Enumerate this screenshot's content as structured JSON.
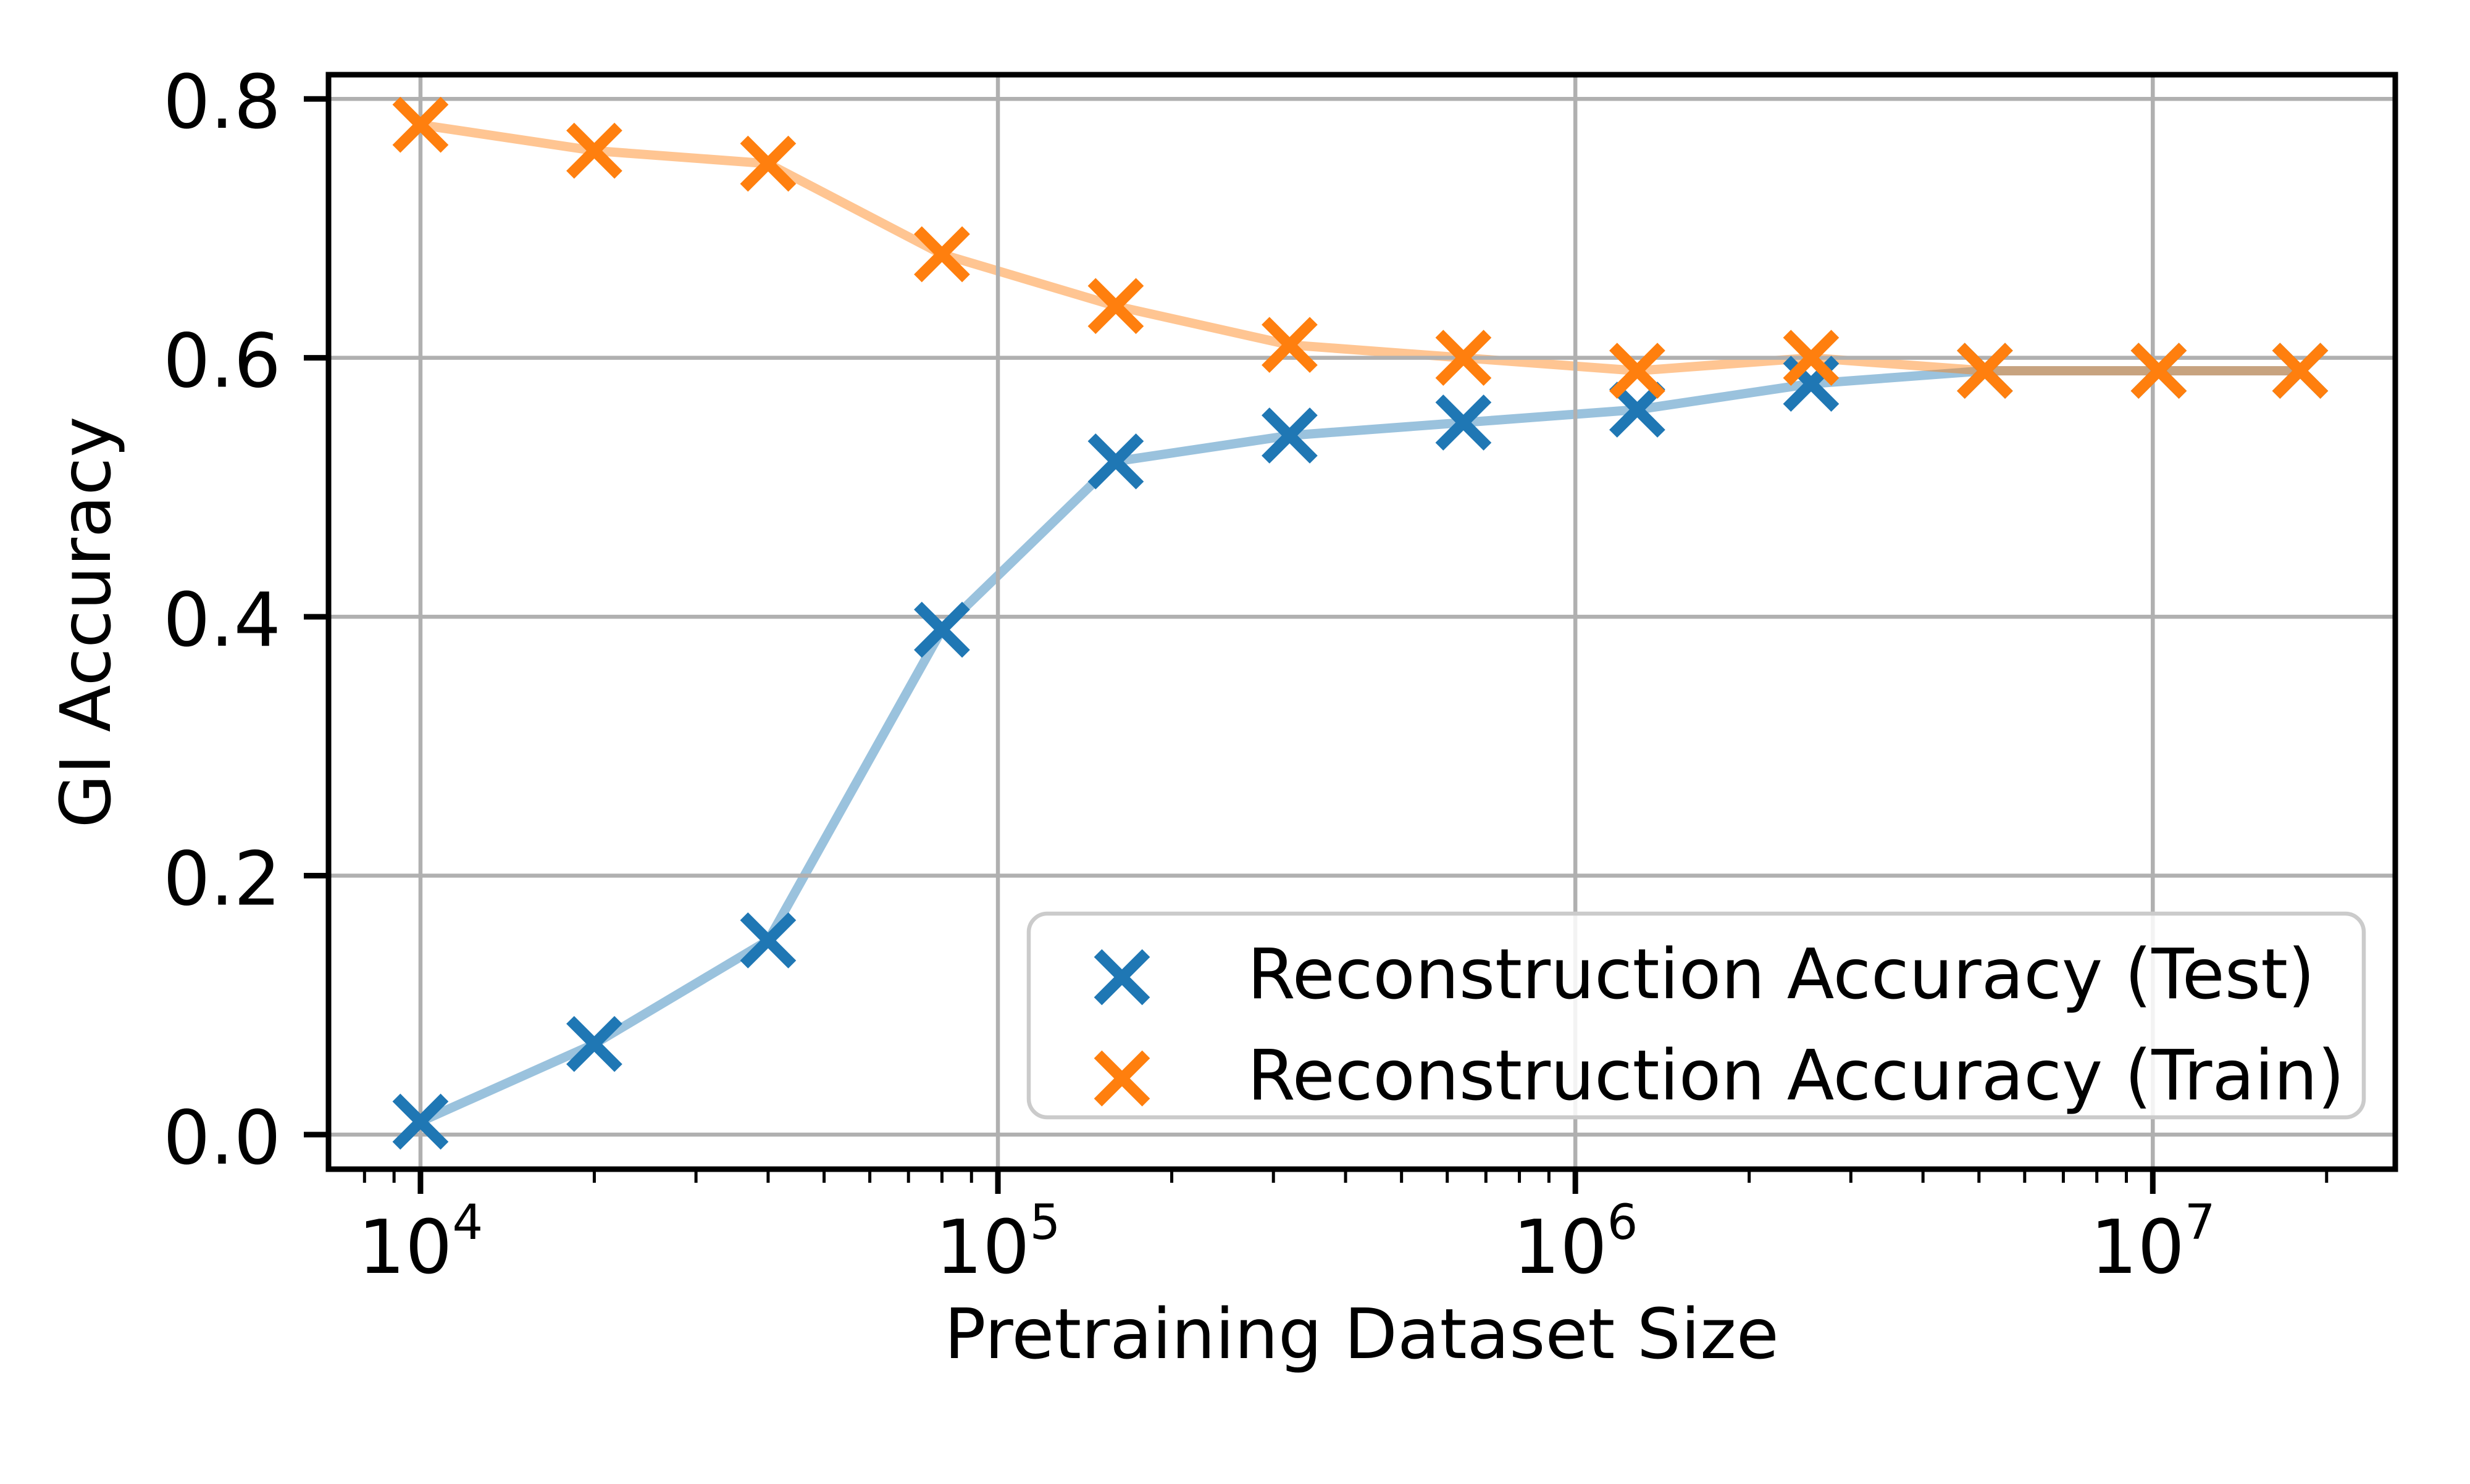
{
  "figure": {
    "background": "#ffffff"
  },
  "chart_data": {
    "type": "line",
    "title": "",
    "xlabel": "Pretraining Dataset Size",
    "ylabel": "GI Accuracy",
    "x_scale": "log",
    "xlim": [
      6930,
      26300000
    ],
    "ylim": [
      -0.0267,
      0.8187
    ],
    "grid": true,
    "legend_position": "lower right",
    "x": [
      10000,
      20000,
      40000,
      80000,
      160000,
      320000,
      640000,
      1280000,
      2560000,
      5120000,
      10240000,
      18000000
    ],
    "series": [
      {
        "name": "Reconstruction Accuracy (Test)",
        "color": "#1f77b4",
        "marker": "x",
        "line_opacity": 0.45,
        "values": [
          0.01,
          0.07,
          0.15,
          0.39,
          0.52,
          0.54,
          0.55,
          0.56,
          0.58,
          0.59,
          0.59,
          0.59
        ]
      },
      {
        "name": "Reconstruction Accuracy (Train)",
        "color": "#ff7f0e",
        "marker": "x",
        "line_opacity": 0.45,
        "values": [
          0.78,
          0.76,
          0.75,
          0.68,
          0.64,
          0.61,
          0.6,
          0.59,
          0.6,
          0.59,
          0.59,
          0.59
        ]
      }
    ],
    "x_ticks": [
      {
        "value": 10000,
        "base": "10",
        "exponent": "4"
      },
      {
        "value": 100000,
        "base": "10",
        "exponent": "5"
      },
      {
        "value": 1000000,
        "base": "10",
        "exponent": "6"
      },
      {
        "value": 10000000,
        "base": "10",
        "exponent": "7"
      }
    ],
    "y_ticks": [
      {
        "value": 0,
        "label": "0.0"
      },
      {
        "value": 0.2,
        "label": "0.2"
      },
      {
        "value": 0.4,
        "label": "0.4"
      },
      {
        "value": 0.6,
        "label": "0.6"
      },
      {
        "value": 0.8,
        "label": "0.8"
      }
    ],
    "colors": {
      "grid": "#b0b0b0",
      "spine": "#000000",
      "tick": "#000000",
      "legend_border": "#cbcbcb",
      "legend_bg": "#ffffff"
    }
  }
}
